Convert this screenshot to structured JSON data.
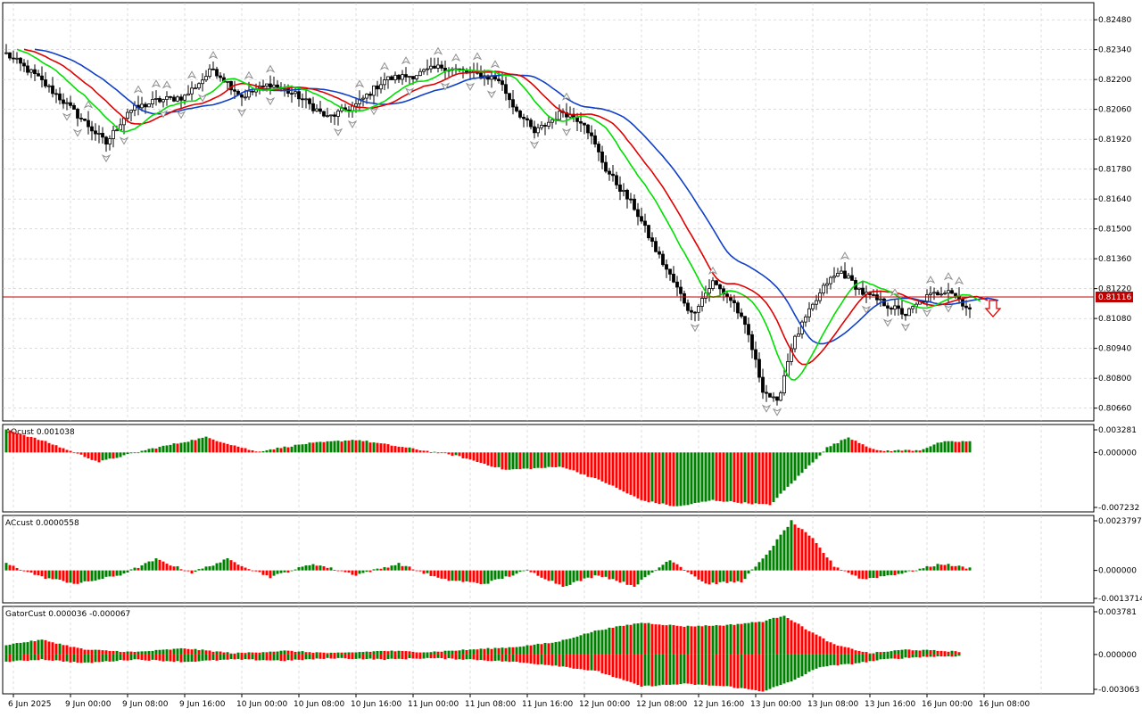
{
  "colors": {
    "up": "#008000",
    "down": "#ff0000",
    "bull_candle": "#ffffff",
    "bear_candle": "#000000",
    "jaw": "#1040c8",
    "teeth": "#e00000",
    "lips": "#00e000",
    "price_line": "#c00000",
    "fractal": "#909090",
    "grid": "#c8c8c8",
    "signal_arrow": "#e00000"
  },
  "main": {
    "axis_labels": [
      "0.82480",
      "0.82340",
      "0.82200",
      "0.82060",
      "0.81920",
      "0.81780",
      "0.81640",
      "0.81500",
      "0.81360",
      "0.81220",
      "0.81080",
      "0.80940",
      "0.80800",
      "0.80660"
    ],
    "current_price": "0.81116",
    "signal_icon": "down-arrow-icon"
  },
  "ao": {
    "label": "AOcust 0.001038",
    "axis_labels": [
      "0.003281",
      "0.000000",
      "-0.007232"
    ]
  },
  "ac": {
    "label": "ACcust 0.0000558",
    "axis_labels": [
      "0.0023797",
      "0.000000",
      "-0.0013714"
    ]
  },
  "gator": {
    "label": "GatorCust 0.000036 -0.000067",
    "axis_labels": [
      "0.003781",
      "0.000000",
      "-0.003063"
    ]
  },
  "time_axis": [
    "6 Jun 2025",
    "9 Jun 00:00",
    "9 Jun 08:00",
    "9 Jun 16:00",
    "10 Jun 00:00",
    "10 Jun 08:00",
    "10 Jun 16:00",
    "11 Jun 00:00",
    "11 Jun 08:00",
    "11 Jun 16:00",
    "12 Jun 00:00",
    "12 Jun 08:00",
    "12 Jun 16:00",
    "13 Jun 00:00",
    "13 Jun 08:00",
    "13 Jun 16:00",
    "16 Jun 00:00",
    "16 Jun 08:00"
  ],
  "chart_data": {
    "type": "candlestick",
    "price_range": [
      0.806,
      0.8256
    ],
    "close_anchors": [
      [
        0,
        0.8232
      ],
      [
        8,
        0.8222
      ],
      [
        14,
        0.8213
      ],
      [
        22,
        0.82
      ],
      [
        28,
        0.819
      ],
      [
        34,
        0.8205
      ],
      [
        42,
        0.821
      ],
      [
        50,
        0.8212
      ],
      [
        58,
        0.8225
      ],
      [
        66,
        0.8212
      ],
      [
        74,
        0.8218
      ],
      [
        82,
        0.8212
      ],
      [
        90,
        0.8202
      ],
      [
        98,
        0.8208
      ],
      [
        106,
        0.822
      ],
      [
        114,
        0.8222
      ],
      [
        122,
        0.8226
      ],
      [
        130,
        0.8223
      ],
      [
        138,
        0.822
      ],
      [
        142,
        0.8208
      ],
      [
        148,
        0.8195
      ],
      [
        156,
        0.8205
      ],
      [
        162,
        0.82
      ],
      [
        168,
        0.8178
      ],
      [
        176,
        0.816
      ],
      [
        182,
        0.814
      ],
      [
        188,
        0.8122
      ],
      [
        192,
        0.811
      ],
      [
        198,
        0.8125
      ],
      [
        204,
        0.8115
      ],
      [
        208,
        0.81
      ],
      [
        212,
        0.8075
      ],
      [
        216,
        0.8068
      ],
      [
        220,
        0.8095
      ],
      [
        224,
        0.8108
      ],
      [
        230,
        0.8125
      ],
      [
        234,
        0.813
      ],
      [
        240,
        0.812
      ],
      [
        246,
        0.8115
      ],
      [
        252,
        0.811
      ],
      [
        258,
        0.8118
      ],
      [
        264,
        0.8122
      ],
      [
        270,
        0.8112
      ]
    ],
    "ao_anchors": [
      [
        0,
        0.0029
      ],
      [
        12,
        0.0012
      ],
      [
        26,
        -0.0012
      ],
      [
        40,
        0.0004
      ],
      [
        56,
        0.0019
      ],
      [
        70,
        0.0001
      ],
      [
        84,
        0.0011
      ],
      [
        98,
        0.0016
      ],
      [
        112,
        0.0006
      ],
      [
        126,
        -0.0004
      ],
      [
        140,
        -0.0022
      ],
      [
        156,
        -0.0018
      ],
      [
        168,
        -0.0038
      ],
      [
        178,
        -0.006
      ],
      [
        188,
        -0.0068
      ],
      [
        198,
        -0.006
      ],
      [
        206,
        -0.0063
      ],
      [
        214,
        -0.0066
      ],
      [
        222,
        -0.003
      ],
      [
        230,
        0.0006
      ],
      [
        236,
        0.0019
      ],
      [
        244,
        0.0002
      ],
      [
        256,
        0.0003
      ],
      [
        262,
        0.0013
      ],
      [
        270,
        0.0014
      ]
    ],
    "ac_anchors": [
      [
        0,
        0.0003
      ],
      [
        10,
        -0.0003
      ],
      [
        20,
        -0.0006
      ],
      [
        32,
        -0.0002
      ],
      [
        42,
        0.0005
      ],
      [
        52,
        -0.0001
      ],
      [
        62,
        0.0005
      ],
      [
        74,
        -0.0003
      ],
      [
        86,
        0.0003
      ],
      [
        98,
        -0.0002
      ],
      [
        110,
        0.0003
      ],
      [
        122,
        -0.0004
      ],
      [
        134,
        -0.0006
      ],
      [
        146,
        0.0
      ],
      [
        156,
        -0.0007
      ],
      [
        166,
        -0.0002
      ],
      [
        176,
        -0.0007
      ],
      [
        186,
        0.0005
      ],
      [
        196,
        -0.0006
      ],
      [
        206,
        -0.0005
      ],
      [
        212,
        0.0005
      ],
      [
        220,
        0.0022
      ],
      [
        226,
        0.0014
      ],
      [
        232,
        0.0002
      ],
      [
        240,
        -0.0004
      ],
      [
        252,
        -0.0001
      ],
      [
        262,
        0.0003
      ],
      [
        270,
        0.0001
      ]
    ],
    "gator_upper_anchors": [
      [
        0,
        0.0008
      ],
      [
        10,
        0.0012
      ],
      [
        22,
        0.0004
      ],
      [
        36,
        0.0002
      ],
      [
        50,
        0.0005
      ],
      [
        64,
        0.0001
      ],
      [
        78,
        0.0003
      ],
      [
        92,
        0.0001
      ],
      [
        106,
        0.0003
      ],
      [
        118,
        0.0002
      ],
      [
        130,
        0.0004
      ],
      [
        142,
        0.0006
      ],
      [
        154,
        0.001
      ],
      [
        166,
        0.002
      ],
      [
        178,
        0.0026
      ],
      [
        190,
        0.0023
      ],
      [
        202,
        0.0024
      ],
      [
        212,
        0.0027
      ],
      [
        218,
        0.0032
      ],
      [
        224,
        0.0021
      ],
      [
        232,
        0.0008
      ],
      [
        242,
        0.0001
      ],
      [
        252,
        0.0004
      ],
      [
        262,
        0.0003
      ],
      [
        270,
        0.0002
      ]
    ],
    "gator_lower_anchors": [
      [
        0,
        -0.0006
      ],
      [
        10,
        -0.0004
      ],
      [
        22,
        -0.0007
      ],
      [
        36,
        -0.0004
      ],
      [
        50,
        -0.0006
      ],
      [
        64,
        -0.0004
      ],
      [
        78,
        -0.0005
      ],
      [
        92,
        -0.0003
      ],
      [
        106,
        -0.0004
      ],
      [
        118,
        -0.0003
      ],
      [
        130,
        -0.0004
      ],
      [
        142,
        -0.0006
      ],
      [
        154,
        -0.0009
      ],
      [
        166,
        -0.0014
      ],
      [
        178,
        -0.0026
      ],
      [
        190,
        -0.0024
      ],
      [
        202,
        -0.0026
      ],
      [
        212,
        -0.003
      ],
      [
        220,
        -0.0022
      ],
      [
        228,
        -0.001
      ],
      [
        236,
        -0.0008
      ],
      [
        246,
        -0.0004
      ],
      [
        256,
        -0.0002
      ],
      [
        270,
        -0.0001
      ]
    ]
  }
}
